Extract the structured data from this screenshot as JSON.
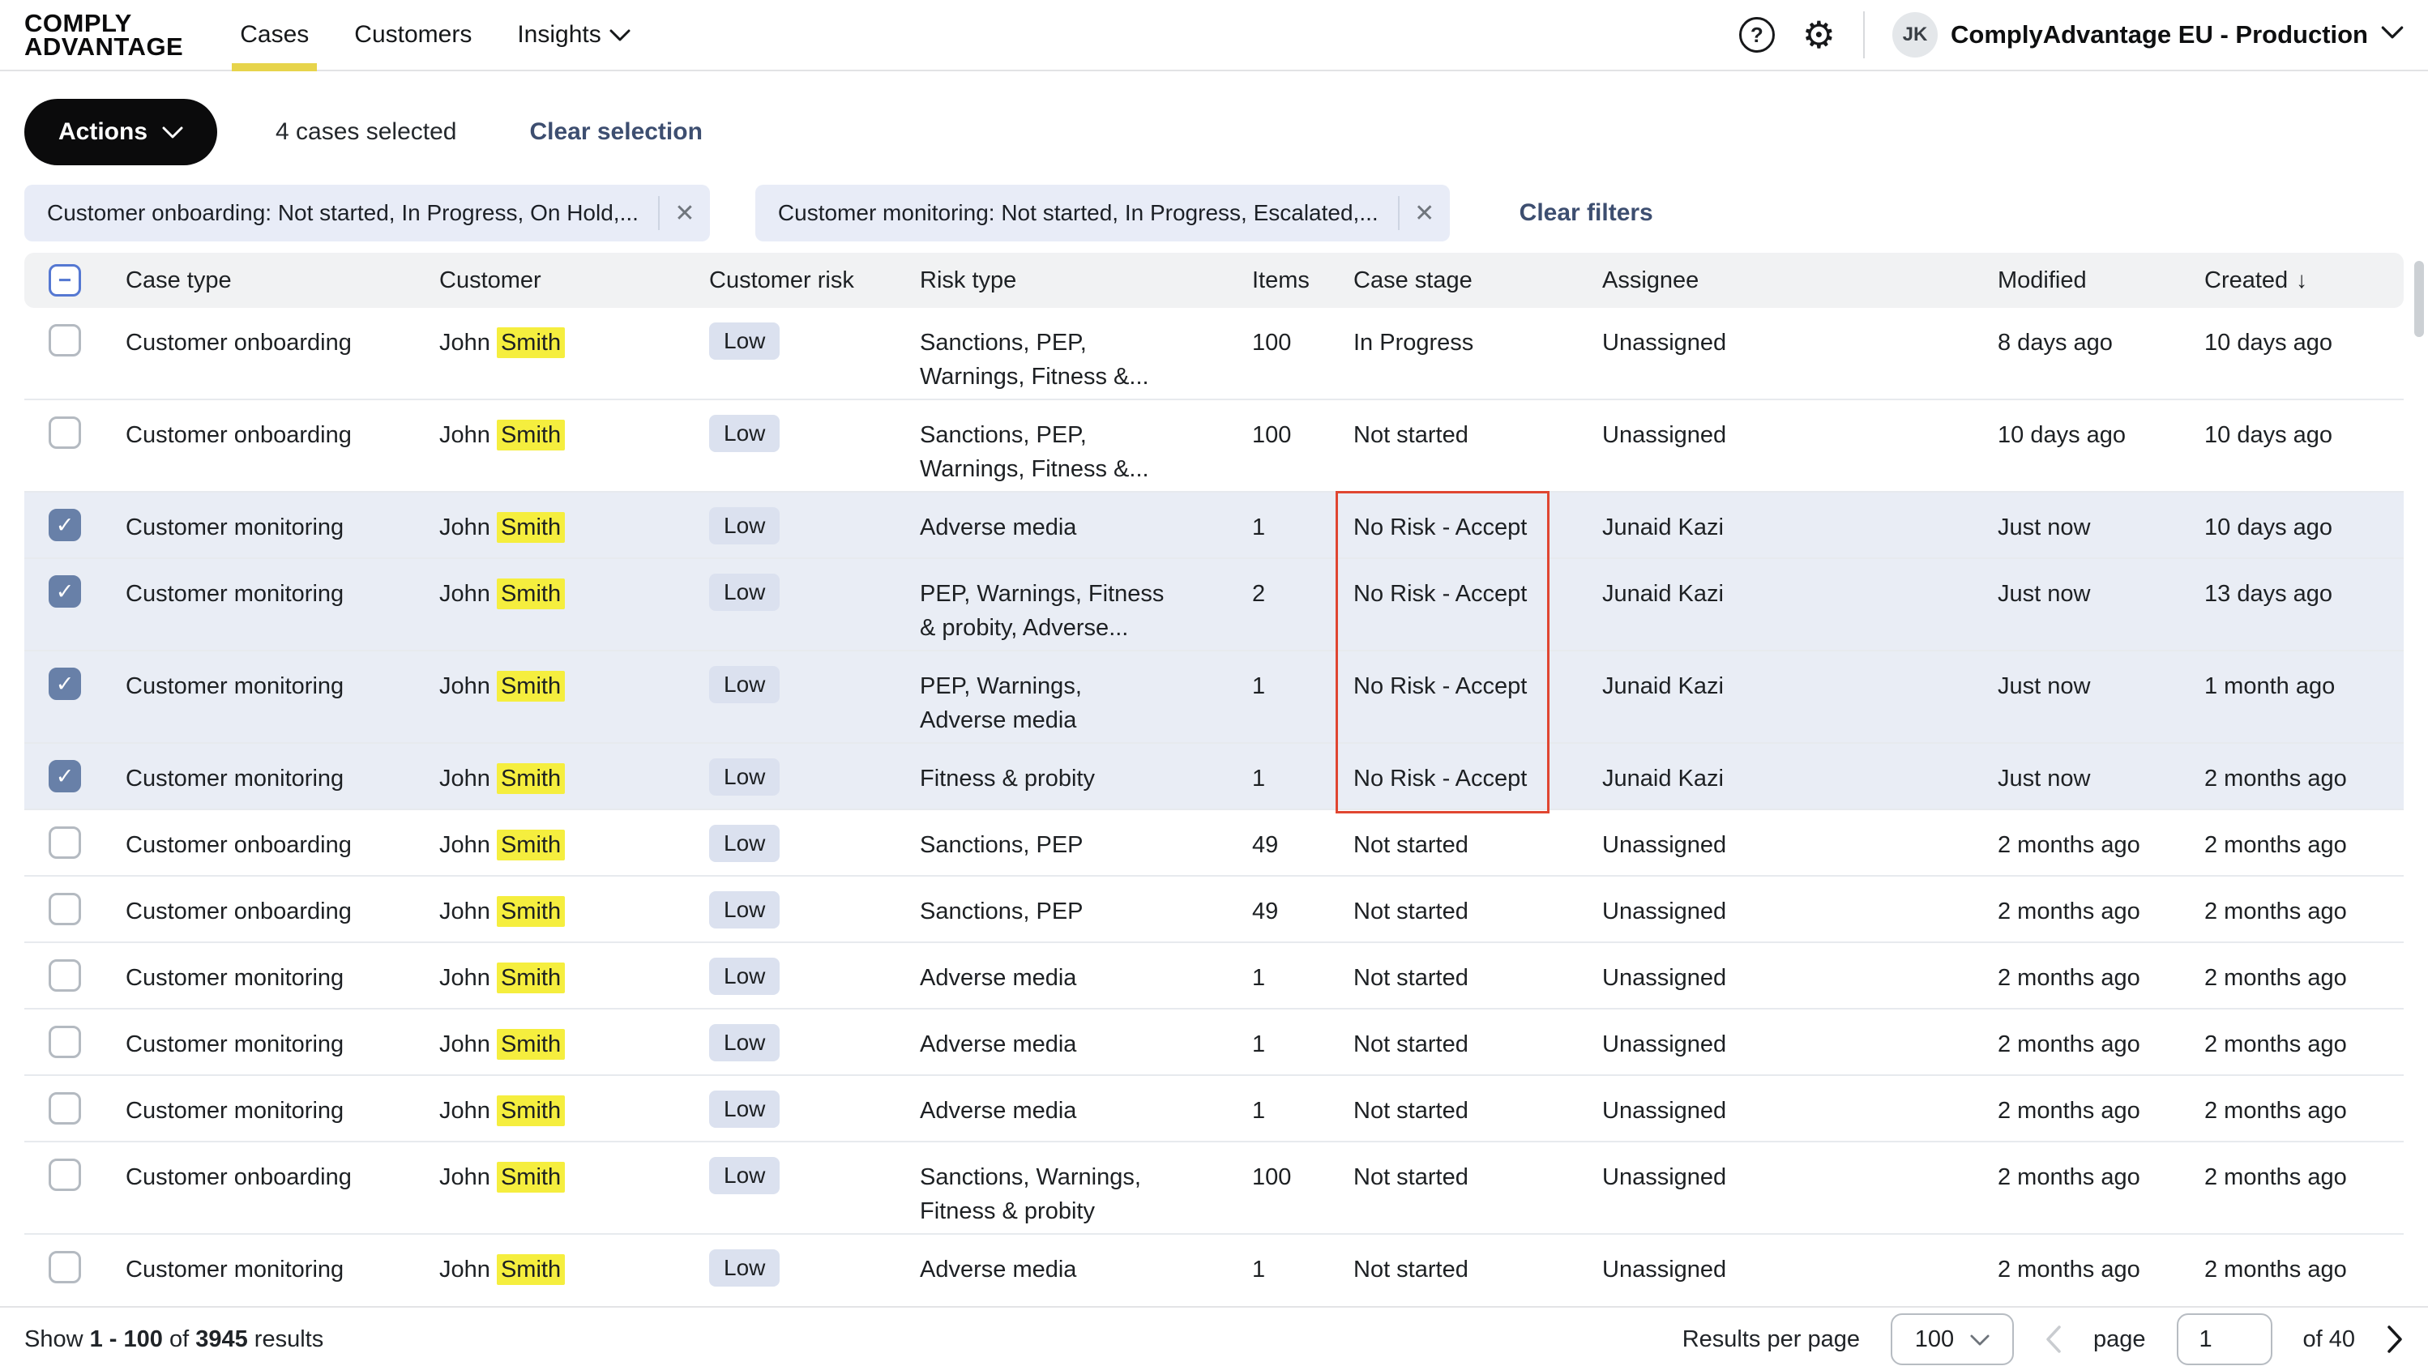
{
  "colors": {
    "highlight-yellow": "#f5ee3e",
    "selected-row": "#e9edf5",
    "checkbox-checked": "#6880a8",
    "badge-bg": "#dbe1ef",
    "annotation-red": "#e04631",
    "link-navy": "#3d4e70",
    "tab-underline": "#e7d44b",
    "chip-bg": "#e8ecf7",
    "header-row-bg": "#f1f2f3"
  },
  "header": {
    "logo": {
      "line1": "COMPLY",
      "line2": "ADVANTAGE"
    },
    "nav": [
      {
        "label": "Cases",
        "active": true
      },
      {
        "label": "Customers",
        "active": false
      },
      {
        "label": "Insights",
        "active": false,
        "has_dropdown": true
      }
    ],
    "account": {
      "initials": "JK",
      "name": "ComplyAdvantage EU - Production"
    }
  },
  "toolbar": {
    "actions_label": "Actions",
    "selection_text": "4 cases selected",
    "clear_selection_label": "Clear selection"
  },
  "filters": {
    "chips": [
      {
        "label": "Customer onboarding: Not started, In Progress, On Hold,..."
      },
      {
        "label": "Customer monitoring: Not started, In Progress, Escalated,..."
      }
    ],
    "clear_label": "Clear filters"
  },
  "table": {
    "columns": [
      {
        "label": "Case type"
      },
      {
        "label": "Customer"
      },
      {
        "label": "Customer risk"
      },
      {
        "label": "Risk type"
      },
      {
        "label": "Items"
      },
      {
        "label": "Case stage"
      },
      {
        "label": "Assignee"
      },
      {
        "label": "Modified"
      },
      {
        "label": "Created",
        "sort": "desc"
      }
    ],
    "rows": [
      {
        "case_type": "Customer onboarding",
        "customer": "John",
        "customer_highlight": "Smith",
        "customer_risk": "Low",
        "risk_type": "Sanctions, PEP,\nWarnings, Fitness &...",
        "items": "100",
        "case_stage": "In Progress",
        "assignee": "Unassigned",
        "modified": "8 days ago",
        "created": "10 days ago",
        "selected": false
      },
      {
        "case_type": "Customer onboarding",
        "customer": "John",
        "customer_highlight": "Smith",
        "customer_risk": "Low",
        "risk_type": "Sanctions, PEP,\nWarnings, Fitness &...",
        "items": "100",
        "case_stage": "Not started",
        "assignee": "Unassigned",
        "modified": "10 days ago",
        "created": "10 days ago",
        "selected": false
      },
      {
        "case_type": "Customer monitoring",
        "customer": "John",
        "customer_highlight": "Smith",
        "customer_risk": "Low",
        "risk_type": "Adverse media",
        "items": "1",
        "case_stage": "No Risk - Accept",
        "assignee": "Junaid Kazi",
        "modified": "Just now",
        "created": "10 days ago",
        "selected": true
      },
      {
        "case_type": "Customer monitoring",
        "customer": "John",
        "customer_highlight": "Smith",
        "customer_risk": "Low",
        "risk_type": "PEP, Warnings, Fitness\n& probity, Adverse...",
        "items": "2",
        "case_stage": "No Risk - Accept",
        "assignee": "Junaid Kazi",
        "modified": "Just now",
        "created": "13 days ago",
        "selected": true
      },
      {
        "case_type": "Customer monitoring",
        "customer": "John",
        "customer_highlight": "Smith",
        "customer_risk": "Low",
        "risk_type": "PEP, Warnings,\nAdverse media",
        "items": "1",
        "case_stage": "No Risk - Accept",
        "assignee": "Junaid Kazi",
        "modified": "Just now",
        "created": "1 month ago",
        "selected": true
      },
      {
        "case_type": "Customer monitoring",
        "customer": "John",
        "customer_highlight": "Smith",
        "customer_risk": "Low",
        "risk_type": "Fitness & probity",
        "items": "1",
        "case_stage": "No Risk - Accept",
        "assignee": "Junaid Kazi",
        "modified": "Just now",
        "created": "2 months ago",
        "selected": true
      },
      {
        "case_type": "Customer onboarding",
        "customer": "John",
        "customer_highlight": "Smith",
        "customer_risk": "Low",
        "risk_type": "Sanctions, PEP",
        "items": "49",
        "case_stage": "Not started",
        "assignee": "Unassigned",
        "modified": "2 months ago",
        "created": "2 months ago",
        "selected": false
      },
      {
        "case_type": "Customer onboarding",
        "customer": "John",
        "customer_highlight": "Smith",
        "customer_risk": "Low",
        "risk_type": "Sanctions, PEP",
        "items": "49",
        "case_stage": "Not started",
        "assignee": "Unassigned",
        "modified": "2 months ago",
        "created": "2 months ago",
        "selected": false
      },
      {
        "case_type": "Customer monitoring",
        "customer": "John",
        "customer_highlight": "Smith",
        "customer_risk": "Low",
        "risk_type": "Adverse media",
        "items": "1",
        "case_stage": "Not started",
        "assignee": "Unassigned",
        "modified": "2 months ago",
        "created": "2 months ago",
        "selected": false
      },
      {
        "case_type": "Customer monitoring",
        "customer": "John",
        "customer_highlight": "Smith",
        "customer_risk": "Low",
        "risk_type": "Adverse media",
        "items": "1",
        "case_stage": "Not started",
        "assignee": "Unassigned",
        "modified": "2 months ago",
        "created": "2 months ago",
        "selected": false
      },
      {
        "case_type": "Customer monitoring",
        "customer": "John",
        "customer_highlight": "Smith",
        "customer_risk": "Low",
        "risk_type": "Adverse media",
        "items": "1",
        "case_stage": "Not started",
        "assignee": "Unassigned",
        "modified": "2 months ago",
        "created": "2 months ago",
        "selected": false
      },
      {
        "case_type": "Customer onboarding",
        "customer": "John",
        "customer_highlight": "Smith",
        "customer_risk": "Low",
        "risk_type": "Sanctions, Warnings,\nFitness & probity",
        "items": "100",
        "case_stage": "Not started",
        "assignee": "Unassigned",
        "modified": "2 months ago",
        "created": "2 months ago",
        "selected": false
      },
      {
        "case_type": "Customer monitoring",
        "customer": "John",
        "customer_highlight": "Smith",
        "customer_risk": "Low",
        "risk_type": "Adverse media",
        "items": "1",
        "case_stage": "Not started",
        "assignee": "Unassigned",
        "modified": "2 months ago",
        "created": "2 months ago",
        "selected": false
      }
    ]
  },
  "annotation": {
    "description": "Red outline around the Case stage values (No Risk - Accept) of the four selected rows"
  },
  "footer": {
    "show": {
      "prefix": "Show",
      "range": "1 - 100",
      "of": "of",
      "total": "3945",
      "suffix": "results"
    },
    "results_per_page_label": "Results per page",
    "page_size": "100",
    "page_label": "page",
    "current_page": "1",
    "total_pages": "of 40"
  }
}
